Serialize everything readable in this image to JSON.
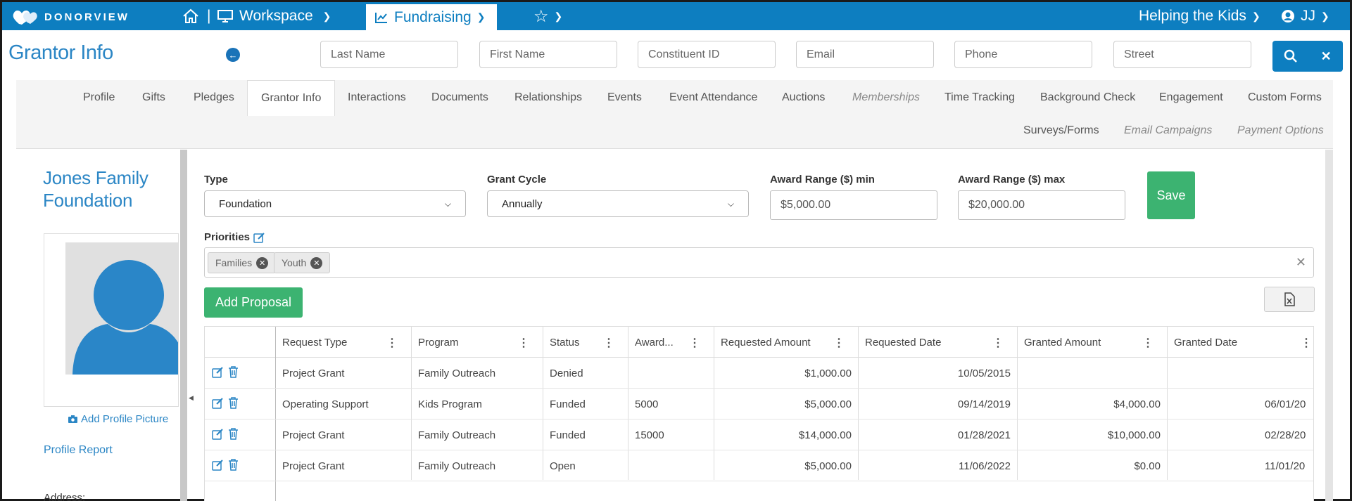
{
  "app": {
    "logo_text": "DONORVIEW"
  },
  "topnav": {
    "workspace": "Workspace",
    "fundraising": "Fundraising",
    "org": "Helping the Kids",
    "user": "JJ"
  },
  "header": {
    "title": "Grantor Info",
    "search": {
      "last_name": "Last Name",
      "first_name": "First Name",
      "constituent_id": "Constituent ID",
      "email": "Email",
      "phone": "Phone",
      "street": "Street"
    }
  },
  "tabs": {
    "profile": "Profile",
    "gifts": "Gifts",
    "pledges": "Pledges",
    "grantor_info": "Grantor Info",
    "interactions": "Interactions",
    "documents": "Documents",
    "relationships": "Relationships",
    "events": "Events",
    "event_attendance": "Event Attendance",
    "auctions": "Auctions",
    "memberships": "Memberships",
    "time_tracking": "Time Tracking",
    "background_check": "Background Check",
    "engagement": "Engagement",
    "custom_forms": "Custom Forms",
    "surveys_forms": "Surveys/Forms",
    "email_campaigns": "Email Campaigns",
    "payment_options": "Payment Options"
  },
  "profile": {
    "name_line1": "Jones Family",
    "name_line2": "Foundation",
    "add_picture": "Add Profile Picture",
    "profile_report": "Profile Report",
    "address_label": "Address:"
  },
  "form": {
    "type_label": "Type",
    "type_value": "Foundation",
    "cycle_label": "Grant Cycle",
    "cycle_value": "Annually",
    "min_label": "Award Range ($) min",
    "min_value": "$5,000.00",
    "max_label": "Award Range ($) max",
    "max_value": "$20,000.00",
    "save": "Save",
    "priorities_label": "Priorities",
    "tags": [
      "Families",
      "Youth"
    ],
    "add_proposal": "Add Proposal"
  },
  "grid": {
    "columns": [
      "Request Type",
      "Program",
      "Status",
      "Award...",
      "Requested Amount",
      "Requested Date",
      "Granted Amount",
      "Granted Date"
    ],
    "rows": [
      [
        "Project Grant",
        "Family Outreach",
        "Denied",
        "",
        "$1,000.00",
        "10/05/2015",
        "",
        ""
      ],
      [
        "Operating Support",
        "Kids Program",
        "Funded",
        "5000",
        "$5,000.00",
        "09/14/2019",
        "$4,000.00",
        "06/01/20"
      ],
      [
        "Project Grant",
        "Family Outreach",
        "Funded",
        "15000",
        "$14,000.00",
        "01/28/2021",
        "$10,000.00",
        "02/28/20"
      ],
      [
        "Project Grant",
        "Family Outreach",
        "Open",
        "",
        "$5,000.00",
        "11/06/2022",
        "$0.00",
        "11/01/20"
      ]
    ]
  },
  "colors": {
    "brand": "#0d7ec0",
    "accent_green": "#3cb371",
    "link": "#2b86c5"
  }
}
